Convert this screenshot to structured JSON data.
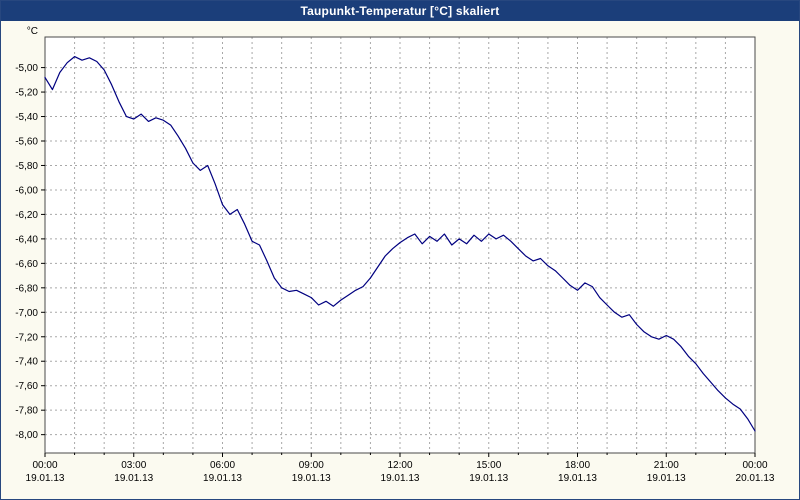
{
  "window": {
    "title": "Taupunkt-Temperatur [°C] skaliert"
  },
  "colors": {
    "titlebar_bg": "#1b3e7a",
    "titlebar_text": "#ffffff",
    "panel_bg": "#fbfaf0",
    "plot_bg": "#ffffff",
    "grid": "#a8a8a8",
    "frame": "#4a4a4a",
    "line": "#000080",
    "label_text": "#000000"
  },
  "chart_data": {
    "type": "line",
    "title": "Taupunkt-Temperatur [°C] skaliert",
    "y_unit": "°C",
    "xlabel": "",
    "ylabel": "Taupunkt-Temperatur",
    "ylim": [
      -8.15,
      -4.75
    ],
    "xlim_hours": [
      0,
      24
    ],
    "grid": "dashed gray, hourly vertical lines and 0.20°C horizontal lines",
    "legend": "none",
    "y_ticks": [
      {
        "value": -5.0,
        "label": "-5,00"
      },
      {
        "value": -5.2,
        "label": "-5,20"
      },
      {
        "value": -5.4,
        "label": "-5,40"
      },
      {
        "value": -5.6,
        "label": "-5,60"
      },
      {
        "value": -5.8,
        "label": "-5,80"
      },
      {
        "value": -6.0,
        "label": "-6,00"
      },
      {
        "value": -6.2,
        "label": "-6,20"
      },
      {
        "value": -6.4,
        "label": "-6,40"
      },
      {
        "value": -6.6,
        "label": "-6,60"
      },
      {
        "value": -6.8,
        "label": "-6,80"
      },
      {
        "value": -7.0,
        "label": "-7,00"
      },
      {
        "value": -7.2,
        "label": "-7,20"
      },
      {
        "value": -7.4,
        "label": "-7,40"
      },
      {
        "value": -7.6,
        "label": "-7,60"
      },
      {
        "value": -7.8,
        "label": "-7,80"
      },
      {
        "value": -8.0,
        "label": "-8,00"
      }
    ],
    "x_ticks": [
      {
        "hour": 0,
        "time": "00:00",
        "date": "19.01.13"
      },
      {
        "hour": 3,
        "time": "03:00",
        "date": "19.01.13"
      },
      {
        "hour": 6,
        "time": "06:00",
        "date": "19.01.13"
      },
      {
        "hour": 9,
        "time": "09:00",
        "date": "19.01.13"
      },
      {
        "hour": 12,
        "time": "12:00",
        "date": "19.01.13"
      },
      {
        "hour": 15,
        "time": "15:00",
        "date": "19.01.13"
      },
      {
        "hour": 18,
        "time": "18:00",
        "date": "19.01.13"
      },
      {
        "hour": 21,
        "time": "21:00",
        "date": "19.01.13"
      },
      {
        "hour": 24,
        "time": "00:00",
        "date": "20.01.13"
      }
    ],
    "series": [
      {
        "name": "Taupunkt-Temperatur",
        "color": "#000080",
        "points": [
          [
            0,
            -5.08
          ],
          [
            0.25,
            -5.18
          ],
          [
            0.5,
            -5.04
          ],
          [
            0.75,
            -4.96
          ],
          [
            1,
            -4.91
          ],
          [
            1.25,
            -4.94
          ],
          [
            1.5,
            -4.92
          ],
          [
            1.75,
            -4.95
          ],
          [
            2,
            -5.02
          ],
          [
            2.25,
            -5.14
          ],
          [
            2.5,
            -5.28
          ],
          [
            2.75,
            -5.4
          ],
          [
            3,
            -5.42
          ],
          [
            3.25,
            -5.38
          ],
          [
            3.5,
            -5.44
          ],
          [
            3.75,
            -5.41
          ],
          [
            4,
            -5.43
          ],
          [
            4.25,
            -5.47
          ],
          [
            4.5,
            -5.56
          ],
          [
            4.75,
            -5.66
          ],
          [
            5,
            -5.78
          ],
          [
            5.25,
            -5.84
          ],
          [
            5.5,
            -5.8
          ],
          [
            5.75,
            -5.95
          ],
          [
            6,
            -6.12
          ],
          [
            6.25,
            -6.2
          ],
          [
            6.5,
            -6.16
          ],
          [
            6.75,
            -6.28
          ],
          [
            7,
            -6.42
          ],
          [
            7.25,
            -6.45
          ],
          [
            7.5,
            -6.58
          ],
          [
            7.75,
            -6.72
          ],
          [
            8,
            -6.8
          ],
          [
            8.25,
            -6.83
          ],
          [
            8.5,
            -6.82
          ],
          [
            8.75,
            -6.85
          ],
          [
            9,
            -6.88
          ],
          [
            9.25,
            -6.94
          ],
          [
            9.5,
            -6.91
          ],
          [
            9.75,
            -6.95
          ],
          [
            10,
            -6.9
          ],
          [
            10.25,
            -6.86
          ],
          [
            10.5,
            -6.82
          ],
          [
            10.75,
            -6.79
          ],
          [
            11,
            -6.72
          ],
          [
            11.25,
            -6.63
          ],
          [
            11.5,
            -6.54
          ],
          [
            11.75,
            -6.48
          ],
          [
            12,
            -6.43
          ],
          [
            12.25,
            -6.39
          ],
          [
            12.5,
            -6.36
          ],
          [
            12.75,
            -6.44
          ],
          [
            13,
            -6.38
          ],
          [
            13.25,
            -6.42
          ],
          [
            13.5,
            -6.36
          ],
          [
            13.75,
            -6.45
          ],
          [
            14,
            -6.4
          ],
          [
            14.25,
            -6.44
          ],
          [
            14.5,
            -6.37
          ],
          [
            14.75,
            -6.42
          ],
          [
            15,
            -6.36
          ],
          [
            15.25,
            -6.4
          ],
          [
            15.5,
            -6.37
          ],
          [
            15.75,
            -6.42
          ],
          [
            16,
            -6.48
          ],
          [
            16.25,
            -6.54
          ],
          [
            16.5,
            -6.58
          ],
          [
            16.75,
            -6.56
          ],
          [
            17,
            -6.62
          ],
          [
            17.25,
            -6.66
          ],
          [
            17.5,
            -6.72
          ],
          [
            17.75,
            -6.78
          ],
          [
            18,
            -6.82
          ],
          [
            18.25,
            -6.76
          ],
          [
            18.5,
            -6.79
          ],
          [
            18.75,
            -6.88
          ],
          [
            19,
            -6.94
          ],
          [
            19.25,
            -7.0
          ],
          [
            19.5,
            -7.04
          ],
          [
            19.75,
            -7.02
          ],
          [
            20,
            -7.1
          ],
          [
            20.25,
            -7.16
          ],
          [
            20.5,
            -7.2
          ],
          [
            20.75,
            -7.22
          ],
          [
            21,
            -7.19
          ],
          [
            21.25,
            -7.22
          ],
          [
            21.5,
            -7.28
          ],
          [
            21.75,
            -7.36
          ],
          [
            22,
            -7.42
          ],
          [
            22.25,
            -7.5
          ],
          [
            22.5,
            -7.57
          ],
          [
            22.75,
            -7.64
          ],
          [
            23,
            -7.7
          ],
          [
            23.25,
            -7.75
          ],
          [
            23.5,
            -7.79
          ],
          [
            23.75,
            -7.87
          ],
          [
            24,
            -7.97
          ]
        ]
      }
    ]
  }
}
